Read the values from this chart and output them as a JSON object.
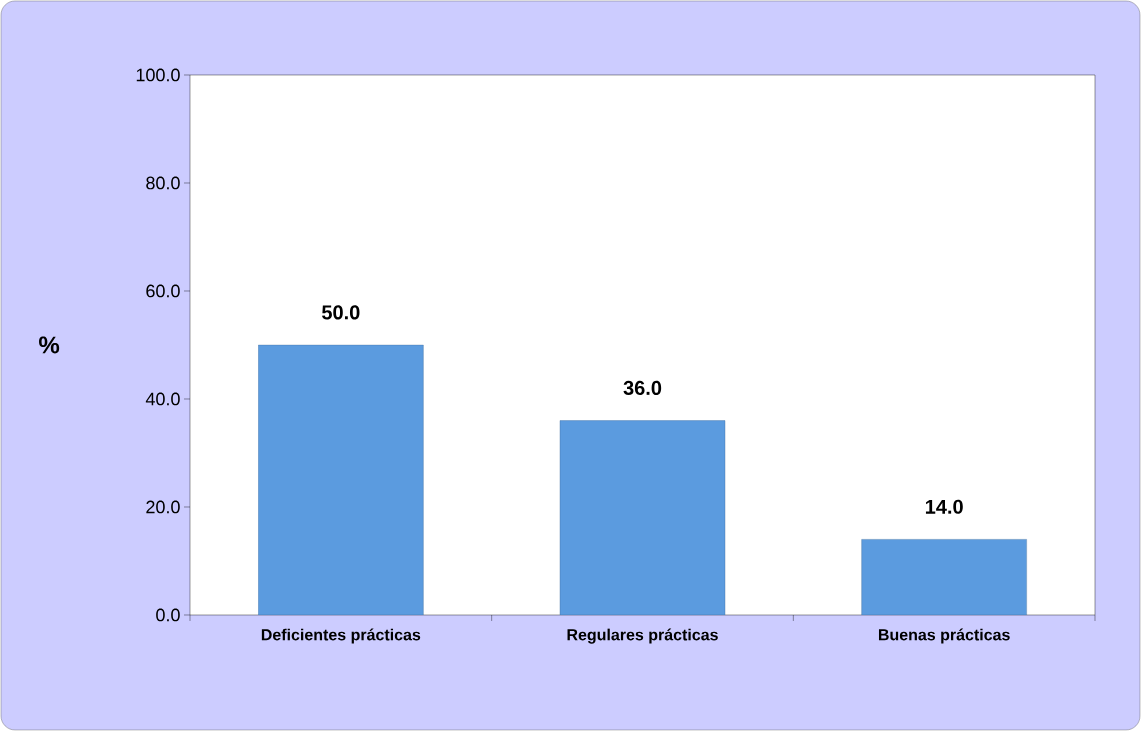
{
  "chart_data": {
    "type": "bar",
    "ylabel": "%",
    "categories": [
      "Deficientes prácticas",
      "Regulares prácticas",
      "Buenas prácticas"
    ],
    "values": [
      50.0,
      36.0,
      14.0
    ],
    "value_labels": [
      "50.0",
      "36.0",
      "14.0"
    ],
    "color": "#5b9bdf",
    "ylim": [
      0,
      100
    ],
    "yticks": [
      {
        "value": 0,
        "label": "0.0"
      },
      {
        "value": 20,
        "label": "20.0"
      },
      {
        "value": 40,
        "label": "40.0"
      },
      {
        "value": 60,
        "label": "60.0"
      },
      {
        "value": 80,
        "label": "80.0"
      },
      {
        "value": 100,
        "label": "100.0"
      }
    ],
    "grid": false
  }
}
